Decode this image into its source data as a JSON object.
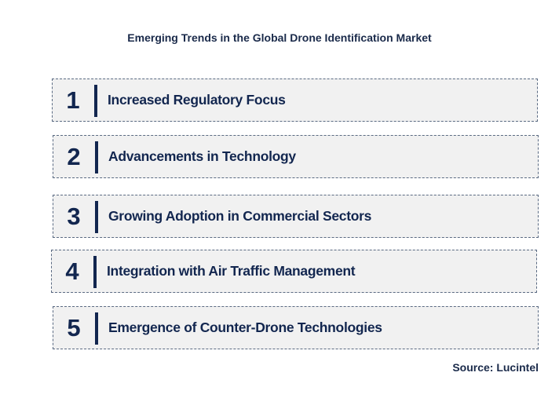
{
  "title": "Emerging Trends in the Global Drone Identification Market",
  "trends": [
    {
      "number": "1",
      "label": "Increased Regulatory Focus"
    },
    {
      "number": "2",
      "label": "Advancements in Technology"
    },
    {
      "number": "3",
      "label": "Growing Adoption in Commercial Sectors"
    },
    {
      "number": "4",
      "label": "Integration with Air Traffic Management"
    },
    {
      "number": "5",
      "label": "Emergence of Counter-Drone Technologies"
    }
  ],
  "source": "Source: Lucintel"
}
